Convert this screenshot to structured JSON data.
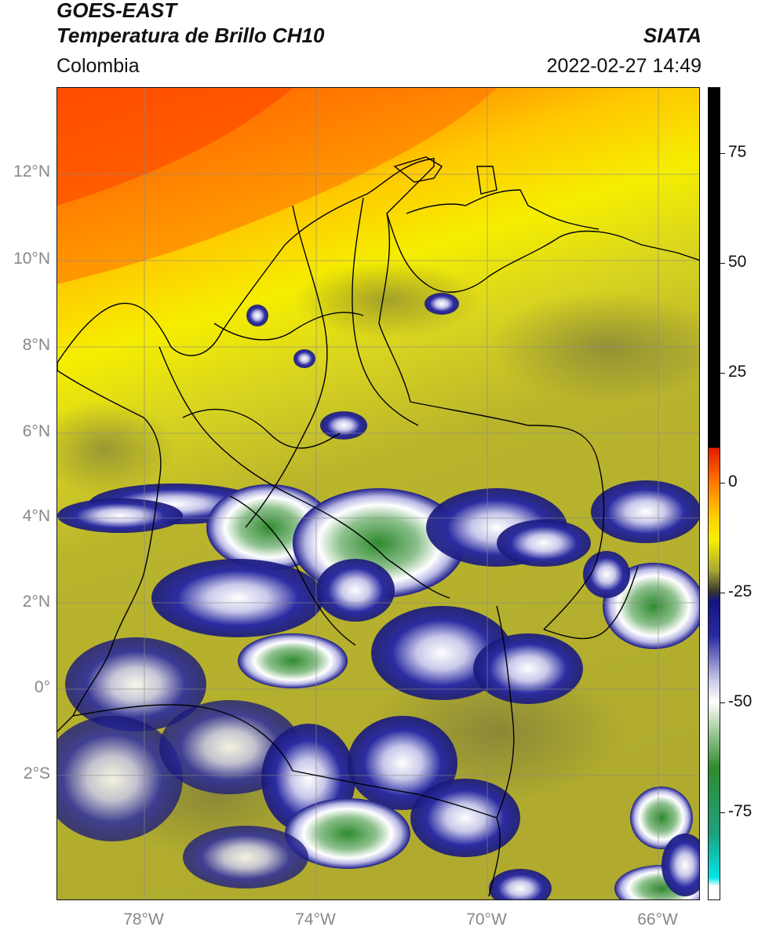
{
  "header": {
    "satellite": "GOES-EAST",
    "product": "Temperatura de Brillo CH10",
    "brand": "SIATA",
    "region": "Colombia",
    "timestamp": "2022-02-27 14:49"
  },
  "map": {
    "lat_range": [
      -5,
      14
    ],
    "lon_range": [
      -80,
      -65
    ],
    "lat_ticks": [
      {
        "value": 12,
        "label": "12°N"
      },
      {
        "value": 10,
        "label": "10°N"
      },
      {
        "value": 8,
        "label": "8°N"
      },
      {
        "value": 6,
        "label": "6°N"
      },
      {
        "value": 4,
        "label": "4°N"
      },
      {
        "value": 2,
        "label": "2°N"
      },
      {
        "value": 0,
        "label": "0°"
      },
      {
        "value": -2,
        "label": "2°S"
      }
    ],
    "lon_ticks": [
      {
        "value": -78,
        "label": "78°W"
      },
      {
        "value": -74,
        "label": "74°W"
      },
      {
        "value": -70,
        "label": "70°W"
      },
      {
        "value": -66,
        "label": "66°W"
      }
    ]
  },
  "colorbar": {
    "range": [
      -95,
      90
    ],
    "ticks": [
      {
        "value": 75,
        "label": "75"
      },
      {
        "value": 50,
        "label": "50"
      },
      {
        "value": 25,
        "label": "25"
      },
      {
        "value": 0,
        "label": "0"
      },
      {
        "value": -25,
        "label": "-25"
      },
      {
        "value": -50,
        "label": "-50"
      },
      {
        "value": -75,
        "label": "-75"
      }
    ],
    "stops": [
      {
        "value": 90,
        "color": "#000000"
      },
      {
        "value": 8,
        "color": "#000000"
      },
      {
        "value": 7.9,
        "color": "#e21b00"
      },
      {
        "value": 0,
        "color": "#ff7a00"
      },
      {
        "value": -8,
        "color": "#ffd000"
      },
      {
        "value": -13,
        "color": "#f5f000"
      },
      {
        "value": -20,
        "color": "#a7a735"
      },
      {
        "value": -25,
        "color": "#333333"
      },
      {
        "value": -27,
        "color": "#151580"
      },
      {
        "value": -35,
        "color": "#2a2aa0"
      },
      {
        "value": -45,
        "color": "#c8c8e8"
      },
      {
        "value": -50,
        "color": "#ffffff"
      },
      {
        "value": -55,
        "color": "#b8d8b0"
      },
      {
        "value": -65,
        "color": "#2f8a2f"
      },
      {
        "value": -80,
        "color": "#20a080"
      },
      {
        "value": -90,
        "color": "#00e5e5"
      },
      {
        "value": -92,
        "color": "#ffffff"
      }
    ]
  }
}
